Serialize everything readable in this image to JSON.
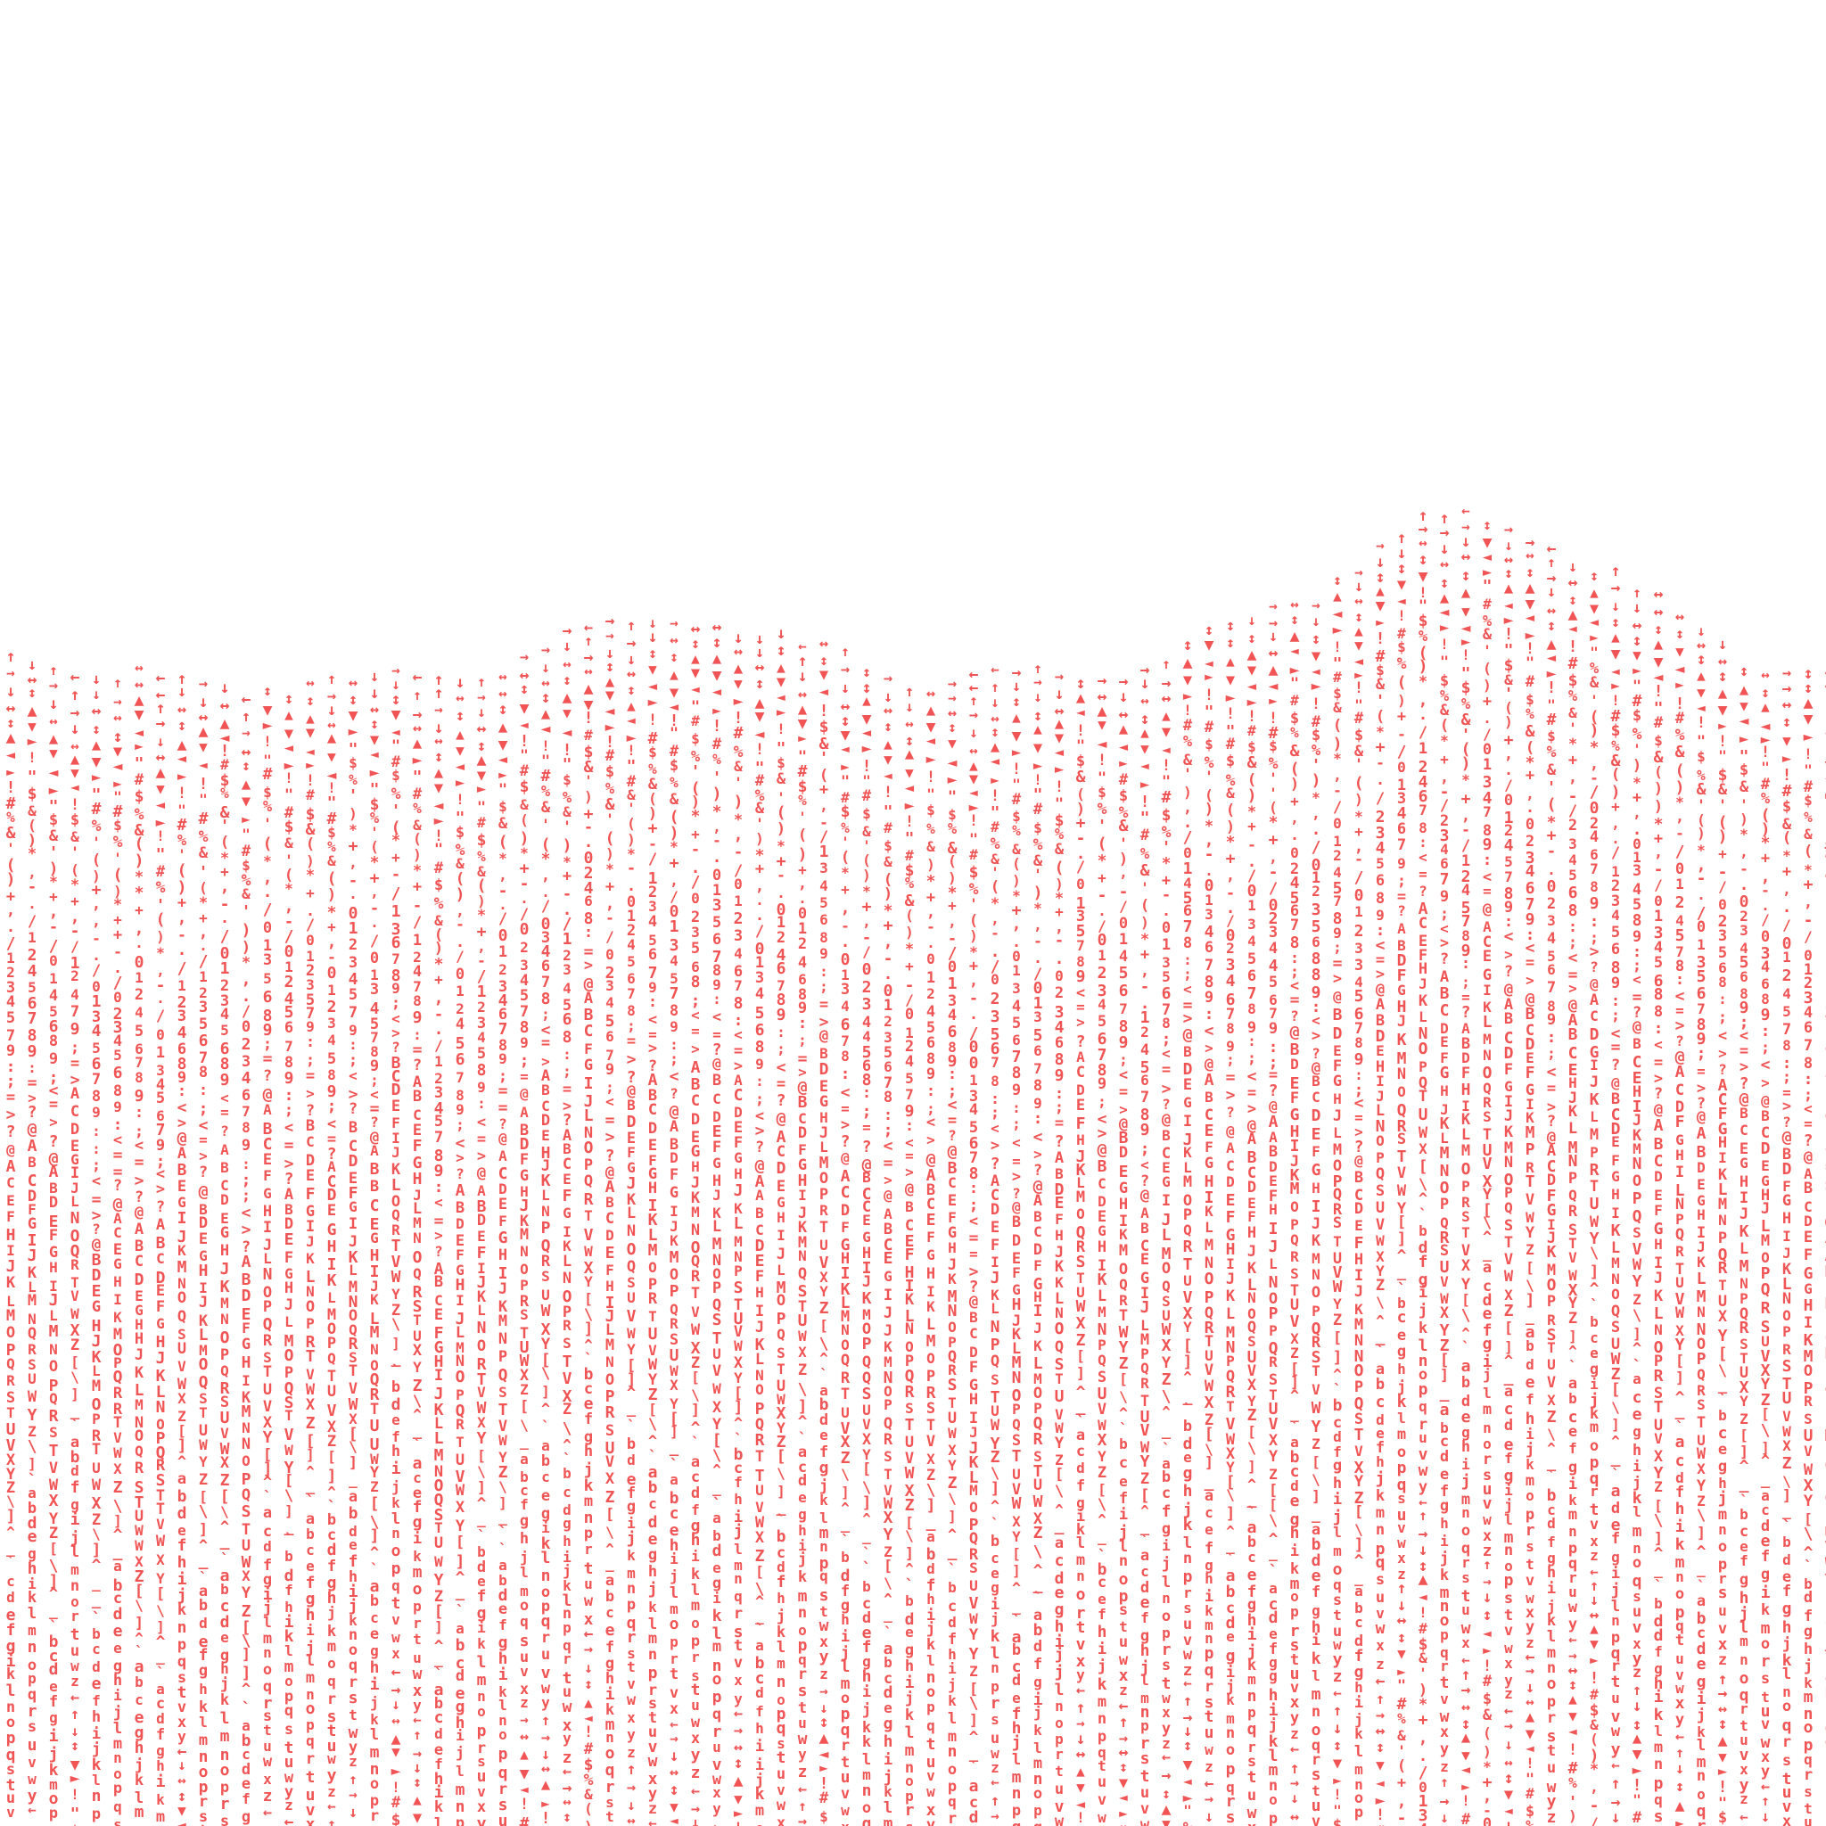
{
  "artwork": {
    "glyph_color": "#f05454",
    "background_color": "#ffffff",
    "glyph_sequence": "←↑→↓↔↕▲▼◄►!\"#$%&'()*+,-./0123456789:;<=>?@ABCDEFGHIJKLMNOPQRSTUVWXYZ[\\]^_`abcdefghijklmnopqrstuvwxyz",
    "description_shape": "sine-wave-top-edge"
  }
}
